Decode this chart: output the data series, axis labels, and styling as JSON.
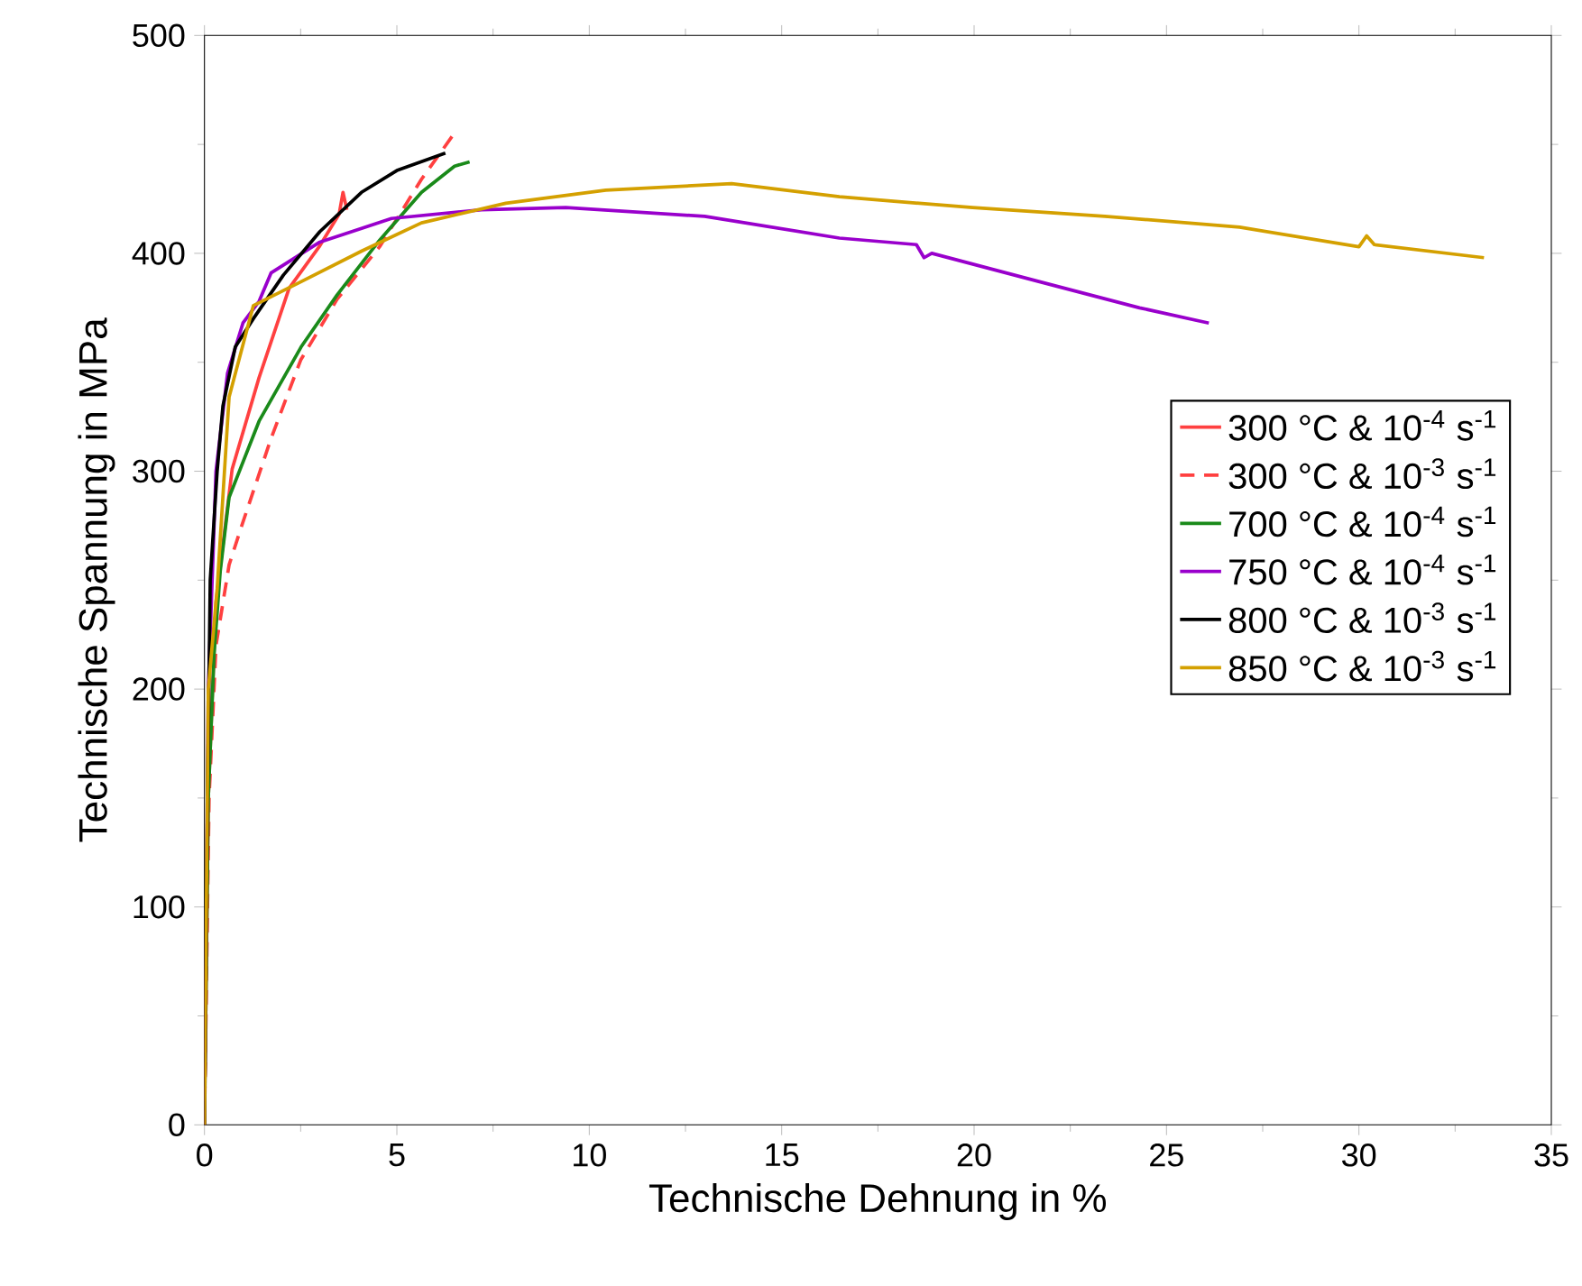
{
  "chart_data": {
    "type": "line",
    "xlabel": "Technische Dehnung in %",
    "ylabel": "Technische Spannung in MPa",
    "xlim": [
      0,
      35
    ],
    "ylim": [
      0,
      500
    ],
    "xticks": [
      0,
      5,
      10,
      15,
      20,
      25,
      30,
      35
    ],
    "yticks": [
      0,
      100,
      200,
      300,
      400,
      500
    ],
    "legend": "right",
    "grid": false,
    "marker": "none",
    "series": [
      {
        "name": "300 °C & 10$^{-4}$ s$^{-1}$",
        "color": "#ff4040",
        "line_style": "solid",
        "x": [
          0,
          0.1,
          0.3,
          0.72,
          1.42,
          2.2,
          2.98,
          3.5,
          3.6,
          3.7
        ],
        "values": [
          0,
          150,
          240,
          301,
          343,
          384,
          403,
          418,
          428,
          420
        ]
      },
      {
        "name": "300 °C & 10$^{-3}$ s$^{-1}$",
        "color": "#ff4040",
        "line_style": "dashed",
        "x": [
          0,
          0.12,
          0.3,
          0.64,
          0.95,
          1.73,
          2.5,
          3.45,
          4.55,
          5.64,
          6.57
        ],
        "values": [
          0,
          150,
          220,
          257,
          274,
          315,
          351,
          379,
          403,
          434,
          457
        ]
      },
      {
        "name": "700 °C & 10$^{-4}$ s$^{-1}$",
        "color": "#1a8a1a",
        "line_style": "solid",
        "x": [
          0,
          0.1,
          0.25,
          0.41,
          0.64,
          1.42,
          2.51,
          3.45,
          4.55,
          5.64,
          6.5,
          6.89
        ],
        "values": [
          0,
          150,
          216,
          254,
          288,
          323,
          357,
          381,
          406,
          428,
          440,
          442
        ]
      },
      {
        "name": "750 °C & 10$^{-4}$ s$^{-1}$",
        "color": "#9900cc",
        "line_style": "solid",
        "x": [
          0,
          0.1,
          0.3,
          0.6,
          1.0,
          1.42,
          1.73,
          2.98,
          4.86,
          7.2,
          9.39,
          13.0,
          16.5,
          18.5,
          18.7,
          18.9,
          21.7,
          24.3,
          26.1
        ],
        "values": [
          0,
          200,
          300,
          345,
          368,
          378,
          391,
          405,
          416,
          420,
          421,
          417,
          407,
          404,
          398,
          400,
          387,
          375,
          368
        ]
      },
      {
        "name": "800 °C & 10$^{-3}$ s$^{-1}$",
        "color": "#000000",
        "line_style": "solid",
        "x": [
          0,
          0.08,
          0.15,
          0.33,
          0.48,
          0.8,
          1.27,
          2.05,
          3,
          4.08,
          5,
          6.26
        ],
        "values": [
          0,
          150,
          250,
          300,
          330,
          357,
          370,
          390,
          410,
          428,
          438,
          446
        ]
      },
      {
        "name": "850 °C & 10$^{-3}$ s$^{-1}$",
        "color": "#d4a000",
        "line_style": "solid",
        "x": [
          0,
          0.1,
          0.33,
          0.64,
          1.27,
          2.51,
          4.08,
          5.64,
          7.83,
          10.43,
          13.7,
          16.5,
          19.96,
          23.4,
          26.9,
          30.0,
          30.2,
          30.4,
          33.25
        ],
        "values": [
          0,
          200,
          246,
          334,
          376,
          387,
          401,
          414,
          423,
          429,
          432,
          426,
          421,
          417,
          412,
          403,
          408,
          404,
          398
        ]
      }
    ]
  }
}
